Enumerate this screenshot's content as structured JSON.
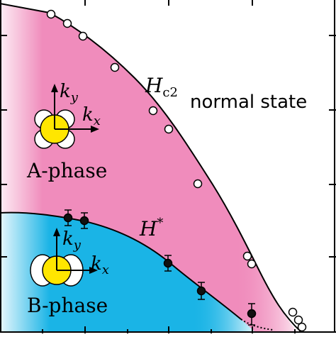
{
  "labels": {
    "hc2_main": "H",
    "hc2_sub": "c2",
    "hstar_main": "H",
    "hstar_sup": "*",
    "normal_state": "normal state",
    "a_phase": "A-phase",
    "b_phase": "B-phase",
    "ky_main": "k",
    "ky_sub": "y",
    "kx_main": "k",
    "kx_sub": "x"
  },
  "colors": {
    "a_phase_fill": "#f08cbc",
    "b_phase_fill": "#1ab4e6",
    "order_parameter": "#ffe600",
    "marker_open": "#ffffff",
    "marker_filled": "#111111",
    "axis": "#000000"
  },
  "icons": {
    "a_phase_order_parameter": "four-lobe-order-parameter-icon",
    "b_phase_order_parameter": "two-lobe-order-parameter-icon"
  }
}
